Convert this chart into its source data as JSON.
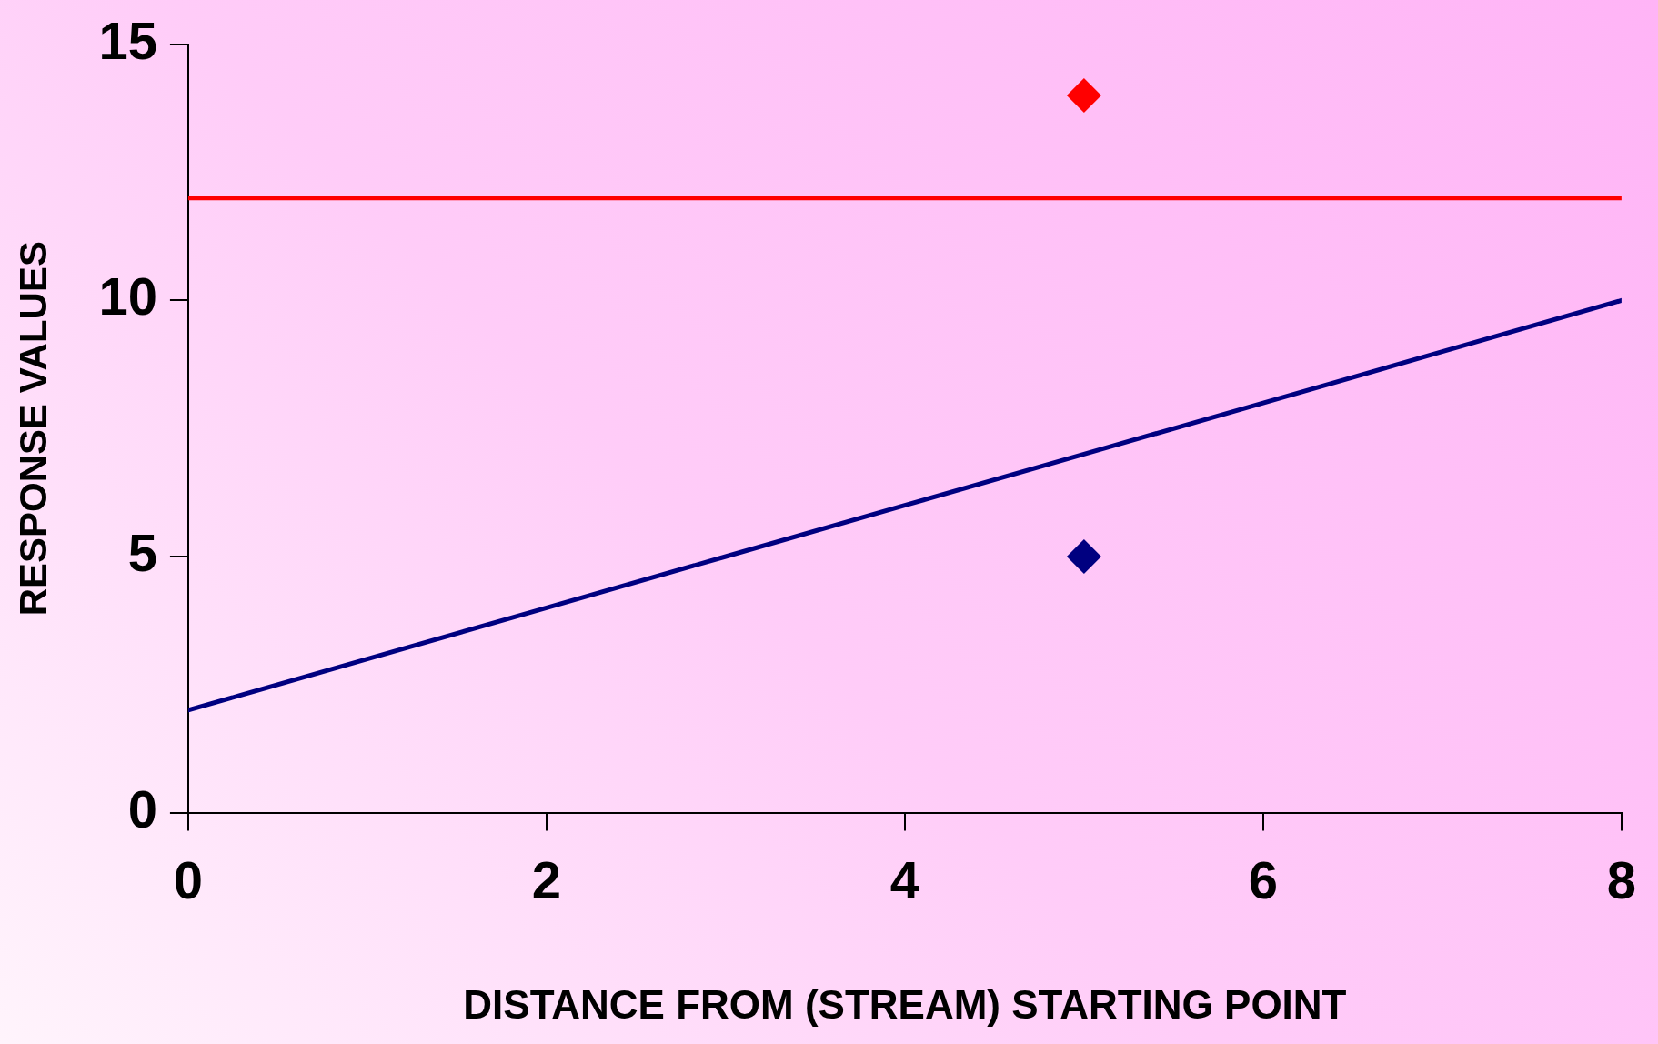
{
  "chart_data": {
    "type": "line",
    "xlabel": "DISTANCE FROM (STREAM) STARTING POINT",
    "ylabel": "RESPONSE VALUES",
    "xlim": [
      0,
      8
    ],
    "ylim": [
      0,
      15
    ],
    "xticks": [
      0,
      2,
      4,
      6,
      8
    ],
    "yticks": [
      0,
      5,
      10,
      15
    ],
    "grid": false,
    "legend": false,
    "series": [
      {
        "type": "line",
        "color": "#000080",
        "marker": "none",
        "x": [
          0,
          1,
          2,
          3,
          4,
          5,
          6,
          7,
          8
        ],
        "values": [
          2,
          3,
          4,
          5,
          6,
          7,
          8,
          9,
          10
        ]
      },
      {
        "type": "scatter",
        "color": "#ff0000",
        "marker": "diamond",
        "x": [
          5
        ],
        "values": [
          14
        ]
      },
      {
        "type": "scatter",
        "color": "#000080",
        "marker": "diamond",
        "x": [
          5
        ],
        "values": [
          5
        ]
      }
    ],
    "ref_lines": [
      {
        "axis": "y",
        "value": 12,
        "color": "#ff0000"
      }
    ]
  }
}
